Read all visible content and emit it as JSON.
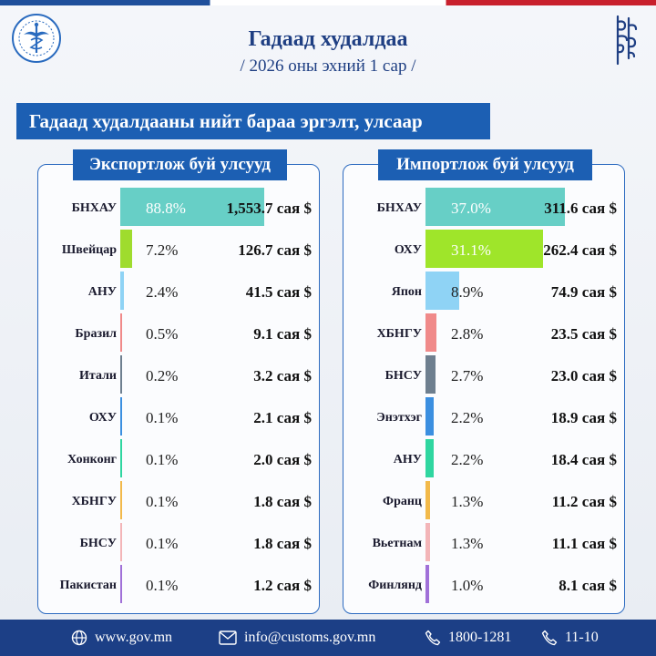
{
  "header": {
    "title": "Гадаад худалдаа",
    "subtitle": "/ 2026 оны эхний 1 сар /"
  },
  "section_title": "Гадаад худалдааны нийт бараа эргэлт, улсаар",
  "colors": {
    "brand_blue": "#1c5fb3",
    "footer_blue": "#1c3f86",
    "title_blue": "#1f3f83"
  },
  "export": {
    "heading": "Экспортлож буй улсууд",
    "rows": [
      {
        "country": "БНХАУ",
        "share": "88.8%",
        "value": "1,553.7 сая $",
        "share_value": 88.8,
        "color": "#67cfc6"
      },
      {
        "country": "Швейцар",
        "share": "7.2%",
        "value": "126.7 сая $",
        "share_value": 7.2,
        "color": "#9fdc2e"
      },
      {
        "country": "АНУ",
        "share": "2.4%",
        "value": "41.5 сая $",
        "share_value": 2.4,
        "color": "#8fd3f5"
      },
      {
        "country": "Бразил",
        "share": "0.5%",
        "value": "9.1 сая $",
        "share_value": 0.5,
        "color": "#f08a8a"
      },
      {
        "country": "Итали",
        "share": "0.2%",
        "value": "3.2 сая $",
        "share_value": 0.2,
        "color": "#6e7f8f"
      },
      {
        "country": "ОХУ",
        "share": "0.1%",
        "value": "2.1 сая $",
        "share_value": 0.1,
        "color": "#3b8fe0"
      },
      {
        "country": "Хонконг",
        "share": "0.1%",
        "value": "2.0 сая $",
        "share_value": 0.1,
        "color": "#2fd6a0"
      },
      {
        "country": "ХБНГУ",
        "share": "0.1%",
        "value": "1.8 сая $",
        "share_value": 0.1,
        "color": "#f2b94a"
      },
      {
        "country": "БНСУ",
        "share": "0.1%",
        "value": "1.8 сая $",
        "share_value": 0.1,
        "color": "#f3b5b8"
      },
      {
        "country": "Пакистан",
        "share": "0.1%",
        "value": "1.2 сая $",
        "share_value": 0.1,
        "color": "#a070d8"
      }
    ]
  },
  "import": {
    "heading": "Импортлож буй улсууд",
    "rows": [
      {
        "country": "БНХАУ",
        "share": "37.0%",
        "value": "311.6 сая $",
        "share_value": 37.0,
        "color": "#67cfc6"
      },
      {
        "country": "ОХУ",
        "share": "31.1%",
        "value": "262.4 сая $",
        "share_value": 31.1,
        "color": "#9fe52a"
      },
      {
        "country": "Япон",
        "share": "8.9%",
        "value": "74.9 сая $",
        "share_value": 8.9,
        "color": "#8fd3f5"
      },
      {
        "country": "ХБНГУ",
        "share": "2.8%",
        "value": "23.5 сая $",
        "share_value": 2.8,
        "color": "#f08a8a"
      },
      {
        "country": "БНСУ",
        "share": "2.7%",
        "value": "23.0 сая $",
        "share_value": 2.7,
        "color": "#6e7f8f"
      },
      {
        "country": "Энэтхэг",
        "share": "2.2%",
        "value": "18.9 сая $",
        "share_value": 2.2,
        "color": "#3b8fe0"
      },
      {
        "country": "АНУ",
        "share": "2.2%",
        "value": "18.4 сая $",
        "share_value": 2.2,
        "color": "#2fd6a0"
      },
      {
        "country": "Франц",
        "share": "1.3%",
        "value": "11.2 сая $",
        "share_value": 1.3,
        "color": "#f2b94a"
      },
      {
        "country": "Вьетнам",
        "share": "1.3%",
        "value": "11.1 сая $",
        "share_value": 1.3,
        "color": "#f3b5b8"
      },
      {
        "country": "Финлянд",
        "share": "1.0%",
        "value": "8.1 сая $",
        "share_value": 1.0,
        "color": "#a070d8"
      }
    ]
  },
  "footer": {
    "website": "www.gov.mn",
    "email": "info@customs.gov.mn",
    "phone": "1800-1281",
    "short_phone": "11-10",
    "icons": [
      "globe-icon",
      "mail-icon",
      "phone-icon",
      "phone-icon"
    ]
  }
}
